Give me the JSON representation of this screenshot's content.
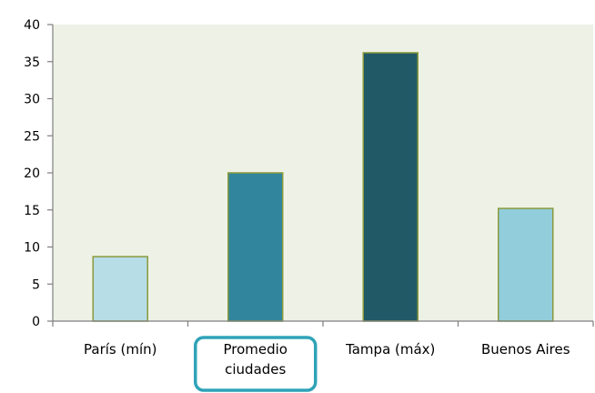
{
  "chart_data": {
    "type": "bar",
    "title": "",
    "xlabel": "",
    "ylabel": "",
    "ylim": [
      0,
      40
    ],
    "yticks": [
      0,
      5,
      10,
      15,
      20,
      25,
      30,
      35,
      40
    ],
    "categories": [
      "París (mín)",
      "Promedio ciudades",
      "Tampa (máx)",
      "Buenos Aires"
    ],
    "category_lines": [
      [
        "París (mín)"
      ],
      [
        "Promedio",
        "ciudades"
      ],
      [
        "Tampa (máx)"
      ],
      [
        "Buenos Aires"
      ]
    ],
    "values": [
      8.7,
      20,
      36.2,
      15.2
    ],
    "bar_colors": [
      "#b7dde7",
      "#31859c",
      "#215967",
      "#92cddc"
    ],
    "bar_outline": "#8a9a3c",
    "plot_background": "#eef2e6",
    "grid": false,
    "legend": "none",
    "highlighted_category": "Promedio ciudades",
    "highlight_color": "#2fa3b8"
  }
}
